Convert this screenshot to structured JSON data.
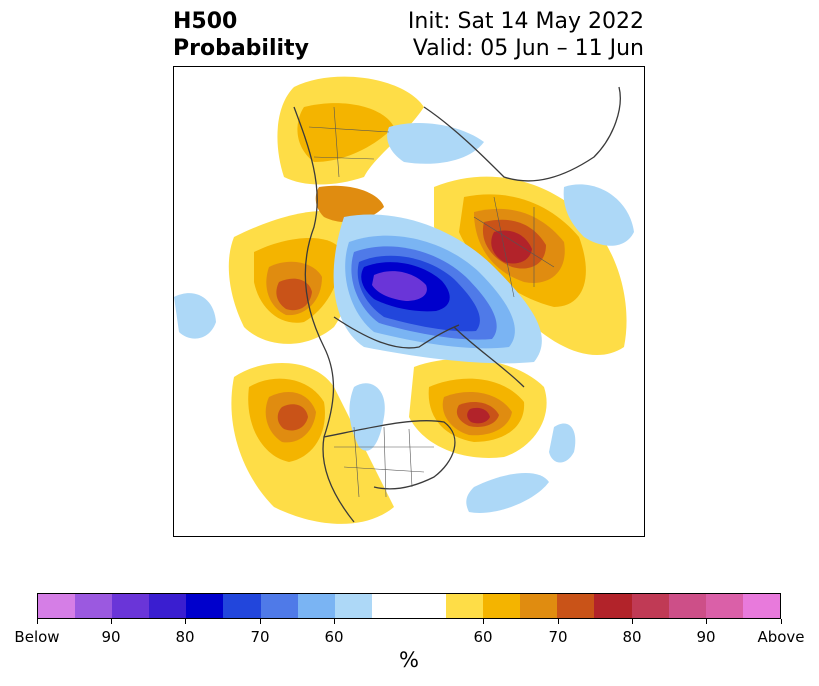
{
  "header": {
    "title_line1": "H500",
    "title_line2": "Probability",
    "init": "Init: Sat 14 May 2022",
    "valid": "Valid: 05 Jun – 11 Jun"
  },
  "colorbar": {
    "unit_label": "%",
    "tick_labels": [
      "Below",
      "90",
      "80",
      "70",
      "60",
      "60",
      "70",
      "80",
      "90",
      "Above"
    ],
    "colors": [
      "#d57ee6",
      "#9b59e0",
      "#6a35d8",
      "#3a1ed0",
      "#0000cc",
      "#2246dc",
      "#4f7ae8",
      "#7ab4f3",
      "#add8f7",
      "#ffffff",
      "#fedd47",
      "#f4b400",
      "#e08c10",
      "#c95318",
      "#b2232a",
      "#c03a55",
      "#cd4f88",
      "#da60a8",
      "#e87adc"
    ]
  }
}
